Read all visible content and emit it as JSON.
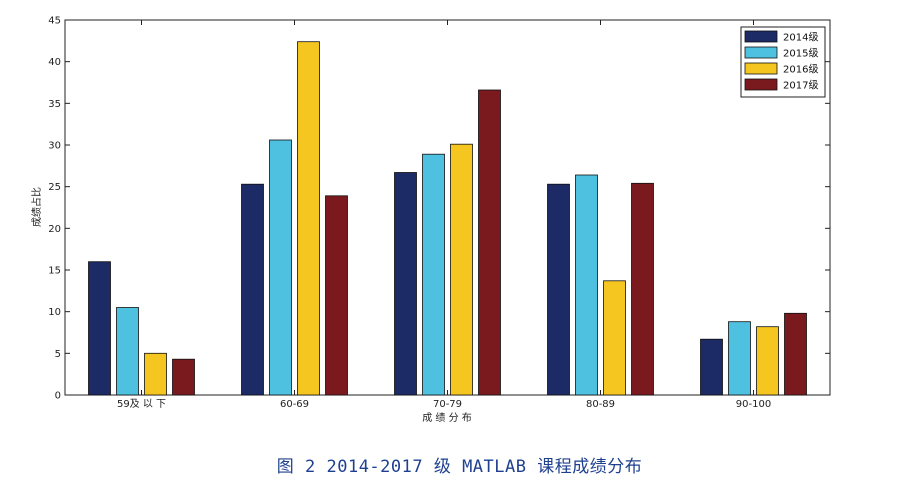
{
  "chart_data": {
    "type": "bar",
    "title": "",
    "xlabel": "成 绩 分 布",
    "ylabel": "成绩占比",
    "categories": [
      "59及 以 下",
      "60-69",
      "70-79",
      "80-89",
      "90-100"
    ],
    "ylim": [
      0,
      45
    ],
    "yticks": [
      0,
      5,
      10,
      15,
      20,
      25,
      30,
      35,
      40,
      45
    ],
    "grid": false,
    "legend_position": "top-right",
    "series": [
      {
        "name": "2014级",
        "color": "#1c2a66",
        "values": [
          16.0,
          25.3,
          26.7,
          25.3,
          6.7
        ]
      },
      {
        "name": "2015级",
        "color": "#4fc1e0",
        "values": [
          10.5,
          30.6,
          28.9,
          26.4,
          8.8
        ]
      },
      {
        "name": "2016级",
        "color": "#f4c61f",
        "values": [
          5.0,
          42.4,
          30.1,
          13.7,
          8.2
        ]
      },
      {
        "name": "2017级",
        "color": "#7a1a1f",
        "values": [
          4.3,
          23.9,
          36.6,
          25.4,
          9.8
        ]
      }
    ]
  },
  "caption": "图 2 2014-2017 级 MATLAB 课程成绩分布"
}
